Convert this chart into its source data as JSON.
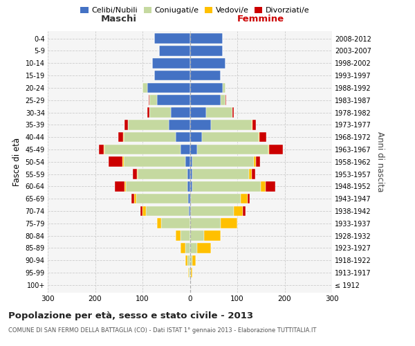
{
  "age_groups": [
    "100+",
    "95-99",
    "90-94",
    "85-89",
    "80-84",
    "75-79",
    "70-74",
    "65-69",
    "60-64",
    "55-59",
    "50-54",
    "45-49",
    "40-44",
    "35-39",
    "30-34",
    "25-29",
    "20-24",
    "15-19",
    "10-14",
    "5-9",
    "0-4"
  ],
  "birth_years": [
    "≤ 1912",
    "1913-1917",
    "1918-1922",
    "1923-1927",
    "1928-1932",
    "1933-1937",
    "1938-1942",
    "1943-1947",
    "1948-1952",
    "1953-1957",
    "1958-1962",
    "1963-1967",
    "1968-1972",
    "1973-1977",
    "1978-1982",
    "1983-1987",
    "1988-1992",
    "1993-1997",
    "1998-2002",
    "2003-2007",
    "2008-2012"
  ],
  "males": {
    "celibi": [
      0,
      0,
      0,
      0,
      0,
      0,
      2,
      3,
      5,
      5,
      10,
      20,
      30,
      45,
      40,
      70,
      90,
      75,
      80,
      65,
      75
    ],
    "coniugati": [
      0,
      2,
      5,
      10,
      20,
      60,
      90,
      110,
      130,
      105,
      130,
      160,
      110,
      85,
      45,
      15,
      10,
      0,
      0,
      0,
      0
    ],
    "vedovi": [
      0,
      2,
      5,
      10,
      10,
      10,
      8,
      5,
      3,
      2,
      2,
      2,
      1,
      0,
      0,
      0,
      0,
      0,
      0,
      0,
      0
    ],
    "divorziati": [
      0,
      0,
      0,
      0,
      0,
      0,
      5,
      5,
      20,
      8,
      30,
      10,
      10,
      8,
      5,
      2,
      0,
      0,
      0,
      0,
      0
    ]
  },
  "females": {
    "nubili": [
      0,
      0,
      0,
      0,
      0,
      0,
      2,
      2,
      5,
      5,
      5,
      15,
      25,
      45,
      35,
      65,
      70,
      65,
      75,
      70,
      70
    ],
    "coniugate": [
      0,
      2,
      5,
      15,
      30,
      65,
      90,
      105,
      145,
      120,
      130,
      150,
      120,
      85,
      55,
      10,
      5,
      0,
      0,
      0,
      0
    ],
    "vedove": [
      0,
      3,
      8,
      30,
      35,
      35,
      20,
      15,
      10,
      5,
      5,
      2,
      2,
      2,
      0,
      0,
      0,
      0,
      0,
      0,
      0
    ],
    "divorziate": [
      0,
      0,
      0,
      0,
      0,
      0,
      5,
      5,
      20,
      8,
      8,
      30,
      15,
      8,
      3,
      2,
      0,
      0,
      0,
      0,
      0
    ]
  },
  "colors": {
    "celibi": "#4472c4",
    "coniugati": "#c5d9a0",
    "vedovi": "#ffc000",
    "divorziati": "#cc0000"
  },
  "xlim": 300,
  "title": "Popolazione per età, sesso e stato civile - 2013",
  "subtitle": "COMUNE DI SAN FERMO DELLA BATTAGLIA (CO) - Dati ISTAT 1° gennaio 2013 - Elaborazione TUTTITALIA.IT",
  "ylabel": "Fasce di età",
  "ylabel2": "Anni di nascita",
  "xlabel_left": "Maschi",
  "xlabel_right": "Femmine",
  "bg_color": "#ffffff",
  "grid_color": "#cccccc",
  "legend_labels": [
    "Celibi/Nubili",
    "Coniugati/e",
    "Vedovi/e",
    "Divorziati/e"
  ]
}
